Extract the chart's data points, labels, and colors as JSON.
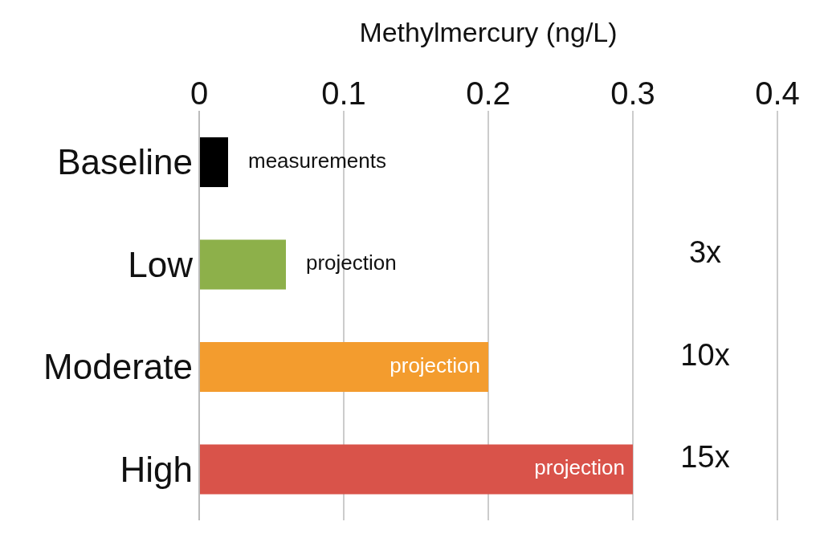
{
  "chart_data": {
    "type": "bar",
    "orientation": "horizontal",
    "xlabel": "Methylmercury (ng/L)",
    "categories": [
      "Baseline",
      "Low",
      "Moderate",
      "High"
    ],
    "values": [
      0.02,
      0.06,
      0.2,
      0.3
    ],
    "colors": [
      "#000000",
      "#8db04a",
      "#f39c2e",
      "#d9534a"
    ],
    "xlim": [
      0,
      0.4
    ],
    "xticks": [
      0,
      0.1,
      0.2,
      0.3,
      0.4
    ],
    "grid": "x",
    "annotations": [
      "measurements",
      "projection",
      "projection",
      "projection",
      "3x",
      "10x",
      "15x"
    ]
  }
}
